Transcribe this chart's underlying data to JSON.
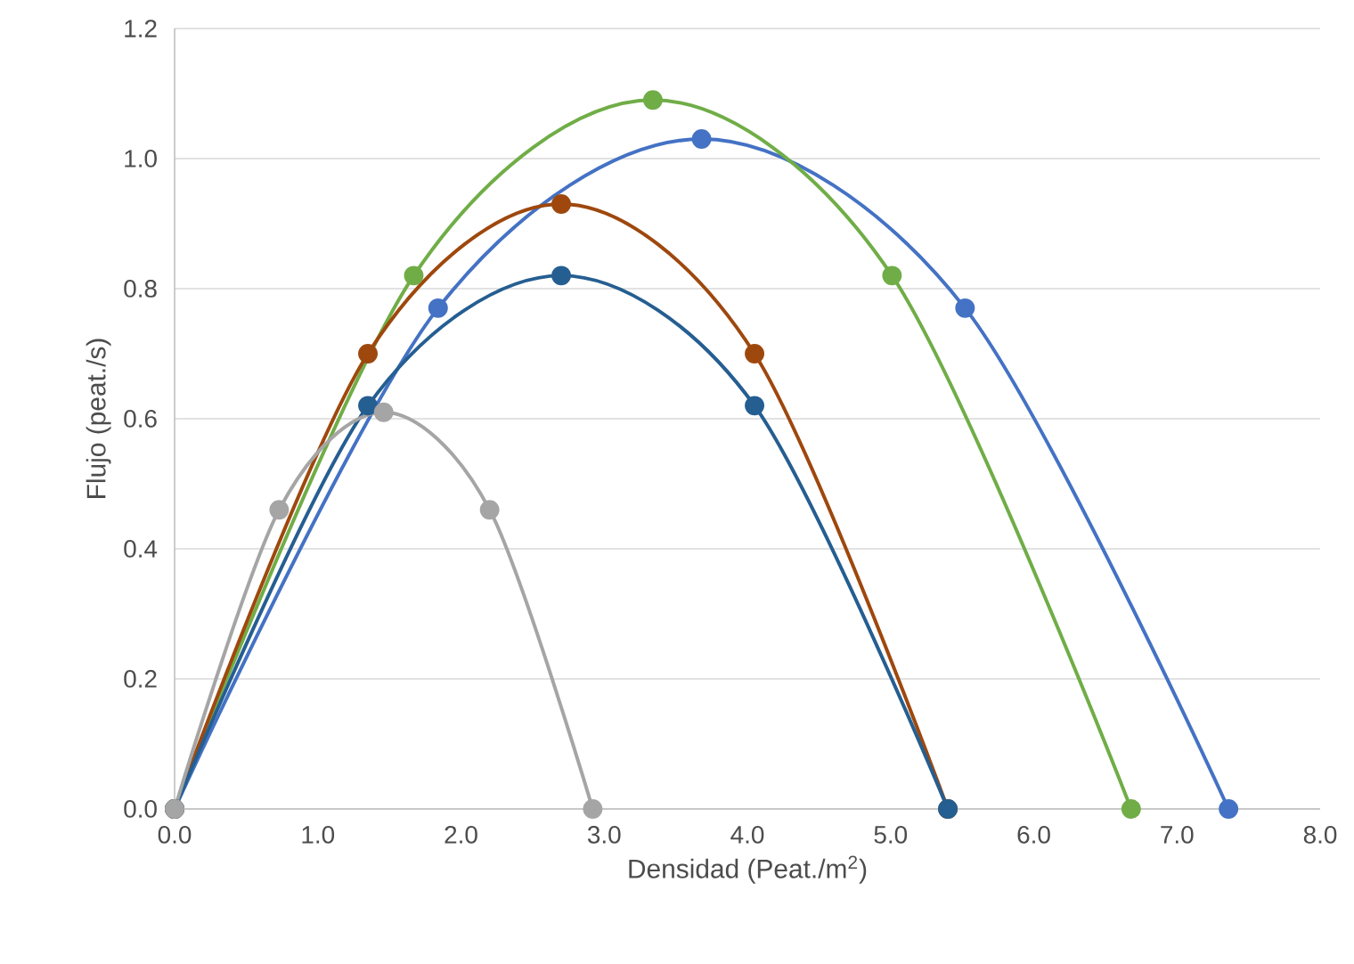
{
  "chart_data": {
    "type": "line",
    "xlabel": "Densidad (Peat./m$^{2}$)",
    "ylabel": "Flujo (peat./s)",
    "xlim": [
      0,
      8
    ],
    "ylim": [
      0,
      1.2
    ],
    "xticks": [
      {
        "value": 0,
        "label": "0.0"
      },
      {
        "value": 1,
        "label": "1.0"
      },
      {
        "value": 2,
        "label": "2.0"
      },
      {
        "value": 3,
        "label": "3.0"
      },
      {
        "value": 4,
        "label": "4.0"
      },
      {
        "value": 5,
        "label": "5.0"
      },
      {
        "value": 6,
        "label": "6.0"
      },
      {
        "value": 7,
        "label": "7.0"
      },
      {
        "value": 8,
        "label": "8.0"
      }
    ],
    "yticks": [
      {
        "value": 0,
        "label": "0.0"
      },
      {
        "value": 0.2,
        "label": "0.2"
      },
      {
        "value": 0.4,
        "label": "0.4"
      },
      {
        "value": 0.6,
        "label": "0.6"
      },
      {
        "value": 0.8,
        "label": "0.8"
      },
      {
        "value": 1,
        "label": "1.0"
      },
      {
        "value": 1.2,
        "label": "1.2"
      }
    ],
    "grid": "y",
    "marker": "circle",
    "line_style": "solid",
    "series": [
      {
        "color": "#4472c4",
        "x": [
          0,
          1.84,
          3.68,
          5.52,
          7.36
        ],
        "values": [
          0,
          0.77,
          1.03,
          0.77,
          0
        ]
      },
      {
        "color": "#70ad47",
        "x": [
          0,
          1.67,
          3.34,
          5.01,
          6.68
        ],
        "values": [
          0,
          0.82,
          1.09,
          0.82,
          0
        ]
      },
      {
        "color": "#9e480e",
        "x": [
          0,
          1.35,
          2.7,
          4.05,
          5.4
        ],
        "values": [
          0,
          0.7,
          0.93,
          0.7,
          0
        ]
      },
      {
        "color": "#255e91",
        "x": [
          0,
          1.35,
          2.7,
          4.05,
          5.4
        ],
        "values": [
          0,
          0.62,
          0.82,
          0.62,
          0
        ]
      },
      {
        "color": "#a5a5a5",
        "x": [
          0,
          0.73,
          1.46,
          2.2,
          2.92
        ],
        "values": [
          0,
          0.46,
          0.61,
          0.46,
          0
        ]
      }
    ]
  }
}
